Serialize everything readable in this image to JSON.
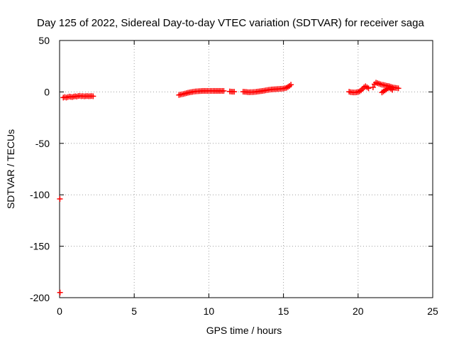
{
  "chart_data": {
    "type": "scatter",
    "title": "Day 125 of 2022, Sidereal Day-to-day VTEC variation (SDTVAR) for receiver saga",
    "xlabel": "GPS time / hours",
    "ylabel": "SDTVAR / TECUs",
    "xlim": [
      0,
      25
    ],
    "ylim": [
      -200,
      50
    ],
    "xticks": [
      0,
      5,
      10,
      15,
      20,
      25
    ],
    "yticks": [
      -200,
      -150,
      -100,
      -50,
      0,
      50
    ],
    "xtick_labels": [
      "0",
      "5",
      "10",
      "15",
      "20",
      "25"
    ],
    "ytick_labels": [
      "-200",
      "-150",
      "-100",
      "-50",
      "0",
      "50"
    ],
    "grid": true,
    "marker": "plus",
    "series_color": "#ff0000",
    "series": [
      {
        "name": "SDTVAR",
        "x": [
          0.02,
          0.03,
          0.25,
          0.35,
          0.45,
          0.55,
          0.65,
          0.75,
          0.85,
          0.95,
          1.05,
          1.15,
          1.25,
          1.35,
          1.45,
          1.55,
          1.65,
          1.75,
          1.85,
          1.95,
          2.05,
          2.15,
          2.25,
          8.0,
          8.1,
          8.2,
          8.3,
          8.4,
          8.5,
          8.6,
          8.7,
          8.8,
          8.9,
          9.0,
          9.1,
          9.2,
          9.3,
          9.4,
          9.5,
          9.6,
          9.7,
          9.8,
          9.9,
          10.0,
          10.1,
          10.2,
          10.3,
          10.4,
          10.5,
          10.6,
          10.7,
          10.8,
          10.9,
          11.0,
          11.4,
          11.5,
          11.6,
          11.7,
          12.3,
          12.4,
          12.5,
          12.6,
          12.7,
          12.8,
          12.9,
          13.0,
          13.1,
          13.2,
          13.3,
          13.4,
          13.5,
          13.6,
          13.7,
          13.8,
          13.9,
          14.0,
          14.1,
          14.2,
          14.3,
          14.4,
          14.5,
          14.6,
          14.7,
          14.8,
          14.9,
          15.0,
          15.1,
          15.2,
          15.3,
          15.4,
          15.5,
          19.4,
          19.5,
          19.6,
          19.7,
          19.8,
          19.9,
          20.0,
          20.1,
          20.2,
          20.3,
          20.4,
          20.5,
          20.6,
          20.7,
          21.0,
          21.1,
          21.2,
          21.3,
          21.4,
          21.5,
          21.6,
          21.7,
          21.8,
          21.9,
          22.0,
          22.1,
          22.2,
          22.3,
          22.4,
          22.5,
          22.6,
          22.7,
          21.6,
          21.7,
          21.8,
          21.9,
          22.0,
          22.1,
          22.2,
          22.3
        ],
        "y": [
          -104,
          -195,
          -5.5,
          -5,
          -5.5,
          -5,
          -4.5,
          -4.8,
          -5,
          -4.5,
          -4.2,
          -4.5,
          -4,
          -3.8,
          -4.2,
          -4,
          -4.3,
          -4.1,
          -4,
          -4.2,
          -4.1,
          -4,
          -4.2,
          -3,
          -2.6,
          -2.3,
          -2,
          -1.6,
          -1.2,
          -0.8,
          -0.5,
          -0.2,
          0,
          0.3,
          0.5,
          0.6,
          0.7,
          0.8,
          0.9,
          1.0,
          1.0,
          1.0,
          1.0,
          1.0,
          1.0,
          1.0,
          1.0,
          1.0,
          1.0,
          1.0,
          1.0,
          1.0,
          1.0,
          1.0,
          0.5,
          0.3,
          0.2,
          0.2,
          0.2,
          0.1,
          0,
          -0.2,
          -0.3,
          -0.2,
          -0.2,
          -0.1,
          0,
          0.2,
          0.4,
          0.6,
          0.8,
          1.0,
          1.2,
          1.5,
          1.8,
          2.0,
          2.2,
          2.4,
          2.5,
          2.6,
          2.7,
          2.8,
          2.9,
          3.0,
          3.1,
          3.3,
          3.6,
          4.0,
          4.8,
          5.8,
          7.0,
          0.2,
          -0.2,
          -0.4,
          -0.5,
          -0.5,
          -0.3,
          0,
          0.5,
          1.5,
          3.0,
          4.5,
          5.5,
          4.5,
          3.5,
          4.5,
          7.5,
          9.0,
          8.5,
          8.0,
          7.5,
          7.0,
          6.8,
          6.5,
          6.0,
          5.8,
          5.5,
          5.0,
          4.5,
          4.2,
          4.0,
          3.8,
          3.5,
          -0.5,
          0.5,
          1.5,
          2.5,
          3.5,
          4.0,
          3.0,
          2.0
        ]
      }
    ]
  }
}
